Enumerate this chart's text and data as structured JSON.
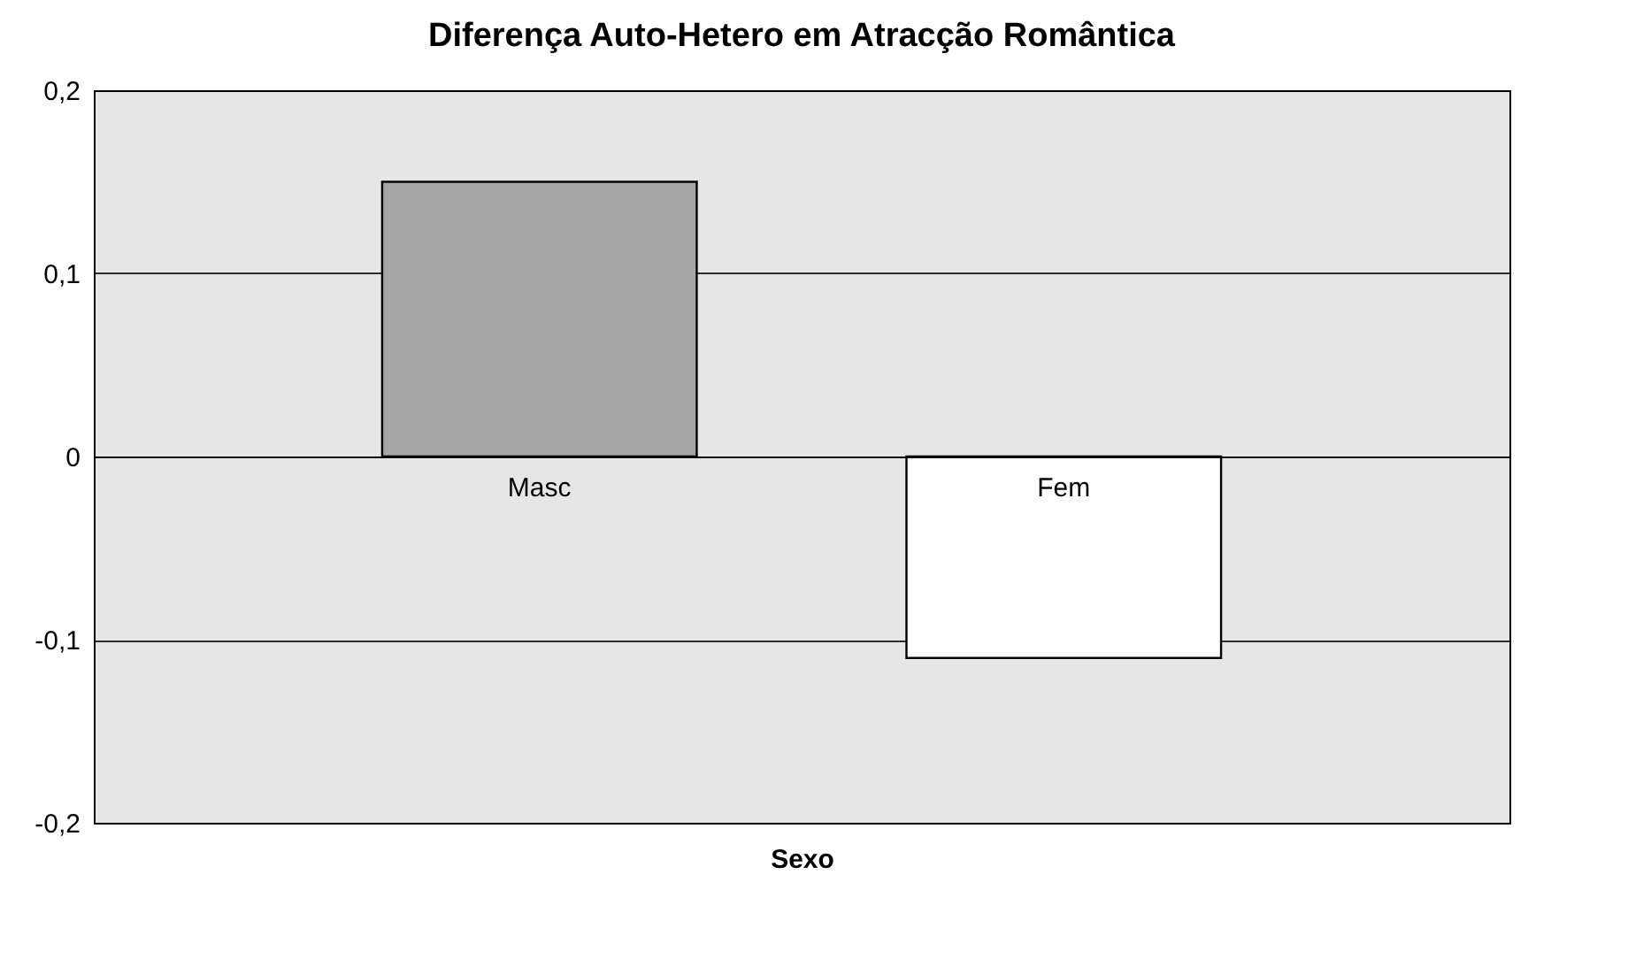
{
  "chart_data": {
    "type": "bar",
    "title": "Diferença Auto-Hetero em Atracção Romântica",
    "xlabel": "Sexo",
    "categories": [
      "Masc",
      "Fem"
    ],
    "values": [
      0.15,
      -0.11
    ],
    "colors": [
      "#a6a6a6",
      "#ffffff"
    ],
    "ylim": [
      -0.2,
      0.2
    ],
    "yticks": [
      {
        "value": -0.2,
        "label": "-0,2"
      },
      {
        "value": -0.1,
        "label": "-0,1"
      },
      {
        "value": 0,
        "label": "0"
      },
      {
        "value": 0.1,
        "label": "0,1"
      },
      {
        "value": 0.2,
        "label": "0,2"
      }
    ],
    "grid": "y",
    "legend": false
  }
}
